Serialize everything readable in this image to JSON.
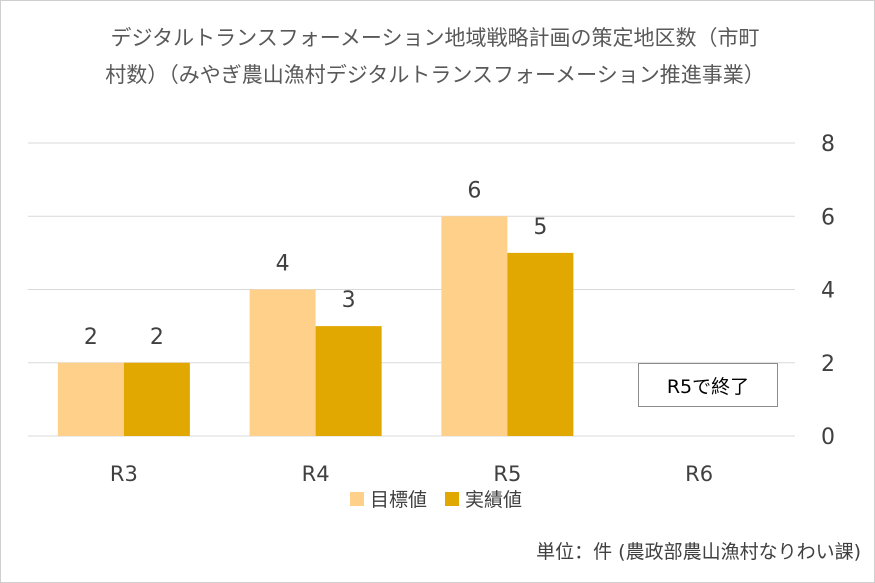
{
  "title": {
    "line1": "デジタルトランスフォーメーション地域戦略計画の策定地区数（市町",
    "line2": "村数）（みやぎ農山漁村デジタルトランスフォーメーション推進事業）"
  },
  "chart_data": {
    "type": "bar",
    "categories": [
      "R3",
      "R4",
      "R5",
      "R6"
    ],
    "series": [
      {
        "name": "目標値",
        "values": [
          2,
          4,
          6,
          null
        ],
        "color": "#ffd08a"
      },
      {
        "name": "実績値",
        "values": [
          2,
          3,
          5,
          null
        ],
        "color": "#e0a800"
      }
    ],
    "ylim": [
      0,
      8
    ],
    "yticks": [
      "0",
      "2",
      "4",
      "6",
      "8"
    ],
    "axis_side": "right",
    "grid": true,
    "legend_position": "bottom",
    "annotation": "R5で終了"
  },
  "unit_note": "単位：件 (農政部農山漁村なりわい課)",
  "colors": {
    "grid": "#d9d9d9",
    "text": "#404040"
  }
}
